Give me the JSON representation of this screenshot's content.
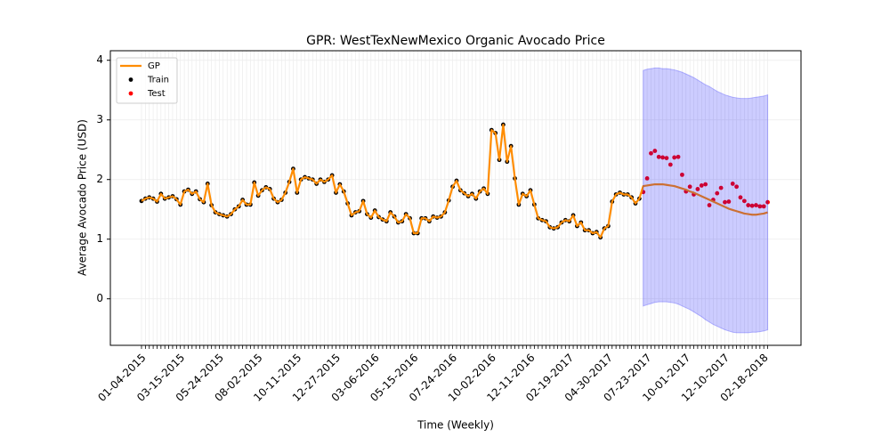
{
  "chart_data": {
    "type": "line",
    "title": "GPR: WestTexNewMexico Organic Avocado Price",
    "x_label": "Time (Weekly)",
    "y_label": "Average Avocado Price (USD)",
    "categories": [
      "01-04-2015",
      null,
      null,
      null,
      null,
      null,
      null,
      null,
      null,
      null,
      "03-15-2015",
      null,
      null,
      null,
      null,
      null,
      null,
      null,
      null,
      null,
      "05-24-2015",
      null,
      null,
      null,
      null,
      null,
      null,
      null,
      null,
      null,
      "08-02-2015",
      null,
      null,
      null,
      null,
      null,
      null,
      null,
      null,
      null,
      "10-11-2015",
      null,
      null,
      null,
      null,
      null,
      null,
      null,
      null,
      null,
      "12-27-2015",
      null,
      null,
      null,
      null,
      null,
      null,
      null,
      null,
      null,
      "03-06-2016",
      null,
      null,
      null,
      null,
      null,
      null,
      null,
      null,
      null,
      "05-15-2016",
      null,
      null,
      null,
      null,
      null,
      null,
      null,
      null,
      null,
      "07-24-2016",
      null,
      null,
      null,
      null,
      null,
      null,
      null,
      null,
      null,
      "10-02-2016",
      null,
      null,
      null,
      null,
      null,
      null,
      null,
      null,
      null,
      "12-11-2016",
      null,
      null,
      null,
      null,
      null,
      null,
      null,
      null,
      null,
      "02-19-2017",
      null,
      null,
      null,
      null,
      null,
      null,
      null,
      null,
      null,
      "04-30-2017",
      null,
      null,
      null,
      null,
      null,
      null,
      null,
      null,
      null,
      "07-23-2017",
      null,
      null,
      null,
      null,
      null,
      null,
      null,
      null,
      null,
      "10-01-2017",
      null,
      null,
      null,
      null,
      null,
      null,
      null,
      null,
      null,
      "12-10-2017",
      null,
      null,
      null,
      null,
      null,
      null,
      null,
      null,
      null,
      "02-18-2018",
      null
    ],
    "series": [
      {
        "name": "GP",
        "color": "#ff8c00",
        "style": "line",
        "values": [
          1.64,
          1.68,
          1.7,
          1.68,
          1.63,
          1.76,
          1.68,
          1.7,
          1.72,
          1.67,
          1.58,
          1.8,
          1.83,
          1.76,
          1.8,
          1.67,
          1.62,
          1.93,
          1.57,
          1.45,
          1.42,
          1.4,
          1.38,
          1.42,
          1.5,
          1.55,
          1.66,
          1.58,
          1.58,
          1.95,
          1.73,
          1.82,
          1.87,
          1.84,
          1.68,
          1.62,
          1.66,
          1.78,
          1.96,
          2.18,
          1.78,
          2.0,
          2.04,
          2.02,
          2.0,
          1.93,
          2.0,
          1.96,
          2.0,
          2.07,
          1.78,
          1.92,
          1.8,
          1.6,
          1.4,
          1.45,
          1.47,
          1.64,
          1.42,
          1.36,
          1.48,
          1.37,
          1.33,
          1.3,
          1.45,
          1.38,
          1.28,
          1.3,
          1.42,
          1.35,
          1.1,
          1.1,
          1.35,
          1.35,
          1.3,
          1.38,
          1.36,
          1.38,
          1.45,
          1.65,
          1.88,
          1.98,
          1.82,
          1.77,
          1.72,
          1.76,
          1.68,
          1.8,
          1.85,
          1.76,
          2.83,
          2.78,
          2.33,
          2.92,
          2.3,
          2.56,
          2.02,
          1.58,
          1.76,
          1.72,
          1.82,
          1.58,
          1.35,
          1.32,
          1.3,
          1.2,
          1.18,
          1.2,
          1.28,
          1.32,
          1.3,
          1.4,
          1.22,
          1.28,
          1.15,
          1.15,
          1.1,
          1.12,
          1.03,
          1.18,
          1.22,
          1.63,
          1.75,
          1.78,
          1.75,
          1.75,
          1.7,
          1.6,
          1.68,
          1.89,
          1.9,
          1.91,
          1.92,
          1.92,
          1.92,
          1.91,
          1.9,
          1.89,
          1.87,
          1.85,
          1.83,
          1.8,
          1.78,
          1.75,
          1.72,
          1.69,
          1.66,
          1.63,
          1.6,
          1.57,
          1.54,
          1.51,
          1.49,
          1.47,
          1.45,
          1.43,
          1.42,
          1.41,
          1.41,
          1.42,
          1.43,
          1.45
        ]
      },
      {
        "name": "Train",
        "color": "#000000",
        "style": "points",
        "values": [
          1.64,
          1.68,
          1.7,
          1.68,
          1.63,
          1.76,
          1.68,
          1.7,
          1.72,
          1.67,
          1.58,
          1.8,
          1.83,
          1.76,
          1.8,
          1.67,
          1.62,
          1.93,
          1.57,
          1.45,
          1.42,
          1.4,
          1.38,
          1.42,
          1.5,
          1.55,
          1.66,
          1.58,
          1.58,
          1.95,
          1.73,
          1.82,
          1.87,
          1.84,
          1.68,
          1.62,
          1.66,
          1.78,
          1.96,
          2.18,
          1.78,
          2.0,
          2.04,
          2.02,
          2.0,
          1.93,
          2.0,
          1.96,
          2.0,
          2.07,
          1.78,
          1.92,
          1.8,
          1.6,
          1.4,
          1.45,
          1.47,
          1.64,
          1.42,
          1.36,
          1.48,
          1.37,
          1.33,
          1.3,
          1.45,
          1.38,
          1.28,
          1.3,
          1.42,
          1.35,
          1.1,
          1.1,
          1.35,
          1.35,
          1.3,
          1.38,
          1.36,
          1.38,
          1.45,
          1.65,
          1.88,
          1.98,
          1.82,
          1.77,
          1.72,
          1.76,
          1.68,
          1.8,
          1.85,
          1.76,
          2.83,
          2.78,
          2.33,
          2.92,
          2.3,
          2.56,
          2.02,
          1.58,
          1.76,
          1.72,
          1.82,
          1.58,
          1.35,
          1.32,
          1.3,
          1.2,
          1.18,
          1.2,
          1.28,
          1.32,
          1.3,
          1.4,
          1.22,
          1.28,
          1.15,
          1.15,
          1.1,
          1.12,
          1.03,
          1.18,
          1.22,
          1.63,
          1.75,
          1.78,
          1.75,
          1.75,
          1.7,
          1.6,
          1.68,
          null,
          null,
          null,
          null,
          null,
          null,
          null,
          null,
          null,
          null,
          null,
          null,
          null,
          null,
          null,
          null,
          null,
          null,
          null,
          null,
          null,
          null,
          null,
          null,
          null,
          null,
          null,
          null,
          null,
          null,
          null,
          null,
          null
        ]
      },
      {
        "name": "Test",
        "color": "#ff0000",
        "style": "points",
        "values": [
          null,
          null,
          null,
          null,
          null,
          null,
          null,
          null,
          null,
          null,
          null,
          null,
          null,
          null,
          null,
          null,
          null,
          null,
          null,
          null,
          null,
          null,
          null,
          null,
          null,
          null,
          null,
          null,
          null,
          null,
          null,
          null,
          null,
          null,
          null,
          null,
          null,
          null,
          null,
          null,
          null,
          null,
          null,
          null,
          null,
          null,
          null,
          null,
          null,
          null,
          null,
          null,
          null,
          null,
          null,
          null,
          null,
          null,
          null,
          null,
          null,
          null,
          null,
          null,
          null,
          null,
          null,
          null,
          null,
          null,
          null,
          null,
          null,
          null,
          null,
          null,
          null,
          null,
          null,
          null,
          null,
          null,
          null,
          null,
          null,
          null,
          null,
          null,
          null,
          null,
          null,
          null,
          null,
          null,
          null,
          null,
          null,
          null,
          null,
          null,
          null,
          null,
          null,
          null,
          null,
          null,
          null,
          null,
          null,
          null,
          null,
          null,
          null,
          null,
          null,
          null,
          null,
          null,
          null,
          null,
          null,
          null,
          null,
          null,
          null,
          null,
          null,
          null,
          null,
          1.79,
          2.02,
          2.44,
          2.48,
          2.38,
          2.37,
          2.36,
          2.25,
          2.37,
          2.38,
          2.08,
          1.8,
          1.88,
          1.75,
          1.84,
          1.9,
          1.92,
          1.57,
          1.66,
          1.77,
          1.86,
          1.62,
          1.63,
          1.93,
          1.88,
          1.7,
          1.64,
          1.57,
          1.56,
          1.57,
          1.55,
          1.55,
          1.62
        ]
      }
    ],
    "band": {
      "color": "#0000ff",
      "upper": [
        null,
        null,
        null,
        null,
        null,
        null,
        null,
        null,
        null,
        null,
        null,
        null,
        null,
        null,
        null,
        null,
        null,
        null,
        null,
        null,
        null,
        null,
        null,
        null,
        null,
        null,
        null,
        null,
        null,
        null,
        null,
        null,
        null,
        null,
        null,
        null,
        null,
        null,
        null,
        null,
        null,
        null,
        null,
        null,
        null,
        null,
        null,
        null,
        null,
        null,
        null,
        null,
        null,
        null,
        null,
        null,
        null,
        null,
        null,
        null,
        null,
        null,
        null,
        null,
        null,
        null,
        null,
        null,
        null,
        null,
        null,
        null,
        null,
        null,
        null,
        null,
        null,
        null,
        null,
        null,
        null,
        null,
        null,
        null,
        null,
        null,
        null,
        null,
        null,
        null,
        null,
        null,
        null,
        null,
        null,
        null,
        null,
        null,
        null,
        null,
        null,
        null,
        null,
        null,
        null,
        null,
        null,
        null,
        null,
        null,
        null,
        null,
        null,
        null,
        null,
        null,
        null,
        null,
        null,
        null,
        null,
        null,
        null,
        null,
        null,
        null,
        null,
        null,
        null,
        3.83,
        3.85,
        3.86,
        3.87,
        3.87,
        3.86,
        3.86,
        3.85,
        3.84,
        3.82,
        3.8,
        3.77,
        3.74,
        3.71,
        3.67,
        3.63,
        3.59,
        3.56,
        3.52,
        3.48,
        3.45,
        3.42,
        3.4,
        3.38,
        3.37,
        3.36,
        3.36,
        3.36,
        3.37,
        3.38,
        3.39,
        3.4,
        3.42
      ],
      "lower": [
        null,
        null,
        null,
        null,
        null,
        null,
        null,
        null,
        null,
        null,
        null,
        null,
        null,
        null,
        null,
        null,
        null,
        null,
        null,
        null,
        null,
        null,
        null,
        null,
        null,
        null,
        null,
        null,
        null,
        null,
        null,
        null,
        null,
        null,
        null,
        null,
        null,
        null,
        null,
        null,
        null,
        null,
        null,
        null,
        null,
        null,
        null,
        null,
        null,
        null,
        null,
        null,
        null,
        null,
        null,
        null,
        null,
        null,
        null,
        null,
        null,
        null,
        null,
        null,
        null,
        null,
        null,
        null,
        null,
        null,
        null,
        null,
        null,
        null,
        null,
        null,
        null,
        null,
        null,
        null,
        null,
        null,
        null,
        null,
        null,
        null,
        null,
        null,
        null,
        null,
        null,
        null,
        null,
        null,
        null,
        null,
        null,
        null,
        null,
        null,
        null,
        null,
        null,
        null,
        null,
        null,
        null,
        null,
        null,
        null,
        null,
        null,
        null,
        null,
        null,
        null,
        null,
        null,
        null,
        null,
        null,
        null,
        null,
        null,
        null,
        null,
        null,
        null,
        null,
        -0.12,
        -0.1,
        -0.08,
        -0.06,
        -0.05,
        -0.05,
        -0.05,
        -0.06,
        -0.07,
        -0.09,
        -0.12,
        -0.15,
        -0.18,
        -0.22,
        -0.26,
        -0.3,
        -0.35,
        -0.39,
        -0.43,
        -0.46,
        -0.49,
        -0.52,
        -0.54,
        -0.56,
        -0.57,
        -0.57,
        -0.57,
        -0.57,
        -0.56,
        -0.56,
        -0.55,
        -0.54,
        -0.52
      ]
    },
    "ylim": [
      -0.78,
      4.16
    ],
    "yticks": [
      0,
      1,
      2,
      3,
      4
    ],
    "grid": true,
    "legend": "upper left"
  }
}
